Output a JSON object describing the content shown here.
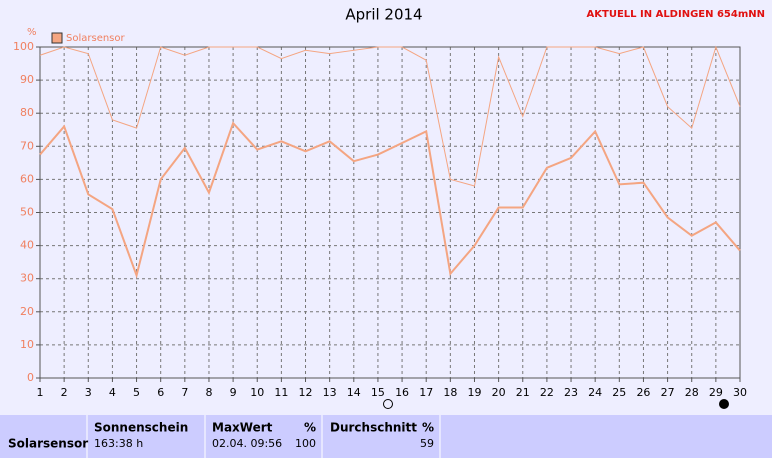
{
  "chart_data": {
    "type": "line",
    "title": "April 2014",
    "annotation": "AKTUELL IN ALDINGEN 654mNN",
    "ylabel": "%",
    "x": [
      1,
      2,
      3,
      4,
      5,
      6,
      7,
      8,
      9,
      10,
      11,
      12,
      13,
      14,
      15,
      16,
      17,
      18,
      19,
      20,
      21,
      22,
      23,
      24,
      25,
      26,
      27,
      28,
      29,
      30
    ],
    "xlim": [
      1,
      30
    ],
    "xticks": [
      1,
      2,
      3,
      4,
      5,
      6,
      7,
      8,
      9,
      10,
      11,
      12,
      13,
      14,
      15,
      16,
      17,
      18,
      19,
      20,
      21,
      22,
      23,
      24,
      25,
      26,
      27,
      28,
      29,
      30
    ],
    "ylim": [
      0,
      100
    ],
    "yticks": [
      0,
      10,
      20,
      30,
      40,
      50,
      60,
      70,
      80,
      90,
      100
    ],
    "grid": true,
    "legend": "top-left",
    "series": [
      {
        "color": "#f4a582",
        "line_width": 1,
        "values": [
          97.5,
          100,
          98,
          78,
          75.5,
          100,
          97.5,
          100,
          100,
          100,
          96.5,
          99,
          98,
          99,
          100,
          100,
          96,
          60,
          58,
          97,
          79,
          100,
          100,
          100,
          98,
          100,
          82,
          75.5,
          100,
          82
        ]
      },
      {
        "name": "Solarsensor",
        "color": "#f4a582",
        "line_width": 2,
        "values": [
          67.5,
          76,
          55.5,
          51,
          31,
          60,
          69.5,
          56,
          77,
          69,
          71.5,
          68.5,
          71.5,
          65.5,
          67.5,
          71,
          74.5,
          31.5,
          40,
          51.5,
          51.5,
          63.5,
          66.5,
          74.5,
          58.5,
          59,
          48.5,
          43,
          47,
          38.5
        ]
      }
    ]
  },
  "table": {
    "label": "Solarsensor",
    "columns": [
      {
        "header": "Sonnenschein",
        "value": "163:38 h"
      },
      {
        "header": "MaxWert",
        "unit": "%",
        "date": "02.04.  09:56",
        "value": "100"
      },
      {
        "header": "Durchschnitt",
        "unit": "%",
        "value": "59"
      }
    ]
  }
}
